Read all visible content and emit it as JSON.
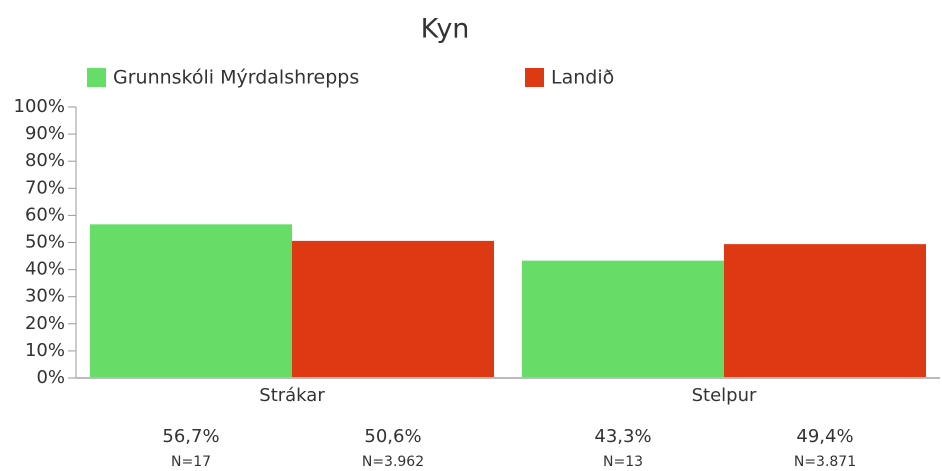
{
  "chart_data": {
    "type": "bar",
    "title": "Kyn",
    "categories": [
      "Strákar",
      "Stelpur"
    ],
    "series": [
      {
        "name": "Grunnskóli Mýrdalshrepps",
        "color": "#66dd66",
        "values": [
          56.7,
          43.3
        ],
        "value_labels": [
          "56,7%",
          "43,3%"
        ],
        "n_labels": [
          "N=17",
          "N=13"
        ]
      },
      {
        "name": "Landið",
        "color": "#dd3a14",
        "values": [
          50.6,
          49.4
        ],
        "value_labels": [
          "50,6%",
          "49,4%"
        ],
        "n_labels": [
          "N=3.962",
          "N=3.871"
        ]
      }
    ],
    "ylim": [
      0,
      100
    ],
    "yticks": [
      {
        "value": 0,
        "label": "0%"
      },
      {
        "value": 10,
        "label": "10%"
      },
      {
        "value": 20,
        "label": "20%"
      },
      {
        "value": 30,
        "label": "30%"
      },
      {
        "value": 40,
        "label": "40%"
      },
      {
        "value": 50,
        "label": "50%"
      },
      {
        "value": 60,
        "label": "60%"
      },
      {
        "value": 70,
        "label": "70%"
      },
      {
        "value": 80,
        "label": "80%"
      },
      {
        "value": 90,
        "label": "90%"
      },
      {
        "value": 100,
        "label": "100%"
      }
    ],
    "legend": "top"
  }
}
